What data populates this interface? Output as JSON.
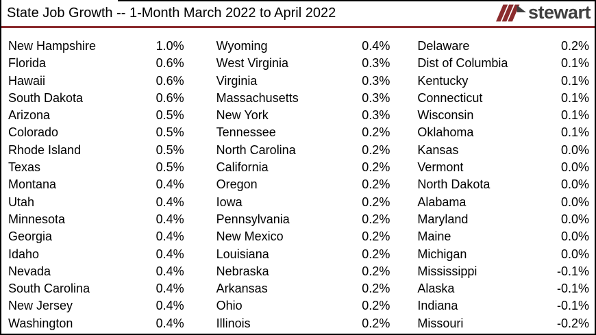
{
  "header": {
    "title": "State Job Growth -- 1-Month March 2022 to April 2022",
    "logo": {
      "text": "stewart",
      "icon": "stewart-triple-slash-icon"
    }
  },
  "colors": {
    "divider_maroon": "#8B2C2E",
    "logo_slash_red": "#8B2C2E",
    "logo_text_gray": "#3F3F3F",
    "border_black": "#000000",
    "text_black": "#000000"
  },
  "table": {
    "columns": [
      {
        "rows": [
          {
            "state": "New Hampshire",
            "value": "1.0%"
          },
          {
            "state": "Florida",
            "value": "0.6%"
          },
          {
            "state": "Hawaii",
            "value": "0.6%"
          },
          {
            "state": "South Dakota",
            "value": "0.6%"
          },
          {
            "state": "Arizona",
            "value": "0.5%"
          },
          {
            "state": "Colorado",
            "value": "0.5%"
          },
          {
            "state": "Rhode Island",
            "value": "0.5%"
          },
          {
            "state": "Texas",
            "value": "0.5%"
          },
          {
            "state": "Montana",
            "value": "0.4%"
          },
          {
            "state": "Utah",
            "value": "0.4%"
          },
          {
            "state": "Minnesota",
            "value": "0.4%"
          },
          {
            "state": "Georgia",
            "value": "0.4%"
          },
          {
            "state": "Idaho",
            "value": "0.4%"
          },
          {
            "state": "Nevada",
            "value": "0.4%"
          },
          {
            "state": "South Carolina",
            "value": "0.4%"
          },
          {
            "state": "New Jersey",
            "value": "0.4%"
          },
          {
            "state": "Washington",
            "value": "0.4%"
          }
        ]
      },
      {
        "rows": [
          {
            "state": "Wyoming",
            "value": "0.4%"
          },
          {
            "state": "West Virginia",
            "value": "0.3%"
          },
          {
            "state": "Virginia",
            "value": "0.3%"
          },
          {
            "state": "Massachusetts",
            "value": "0.3%"
          },
          {
            "state": "New York",
            "value": "0.3%"
          },
          {
            "state": "Tennessee",
            "value": "0.2%"
          },
          {
            "state": "North Carolina",
            "value": "0.2%"
          },
          {
            "state": "California",
            "value": "0.2%"
          },
          {
            "state": "Oregon",
            "value": "0.2%"
          },
          {
            "state": "Iowa",
            "value": "0.2%"
          },
          {
            "state": "Pennsylvania",
            "value": "0.2%"
          },
          {
            "state": "New Mexico",
            "value": "0.2%"
          },
          {
            "state": "Louisiana",
            "value": "0.2%"
          },
          {
            "state": "Nebraska",
            "value": "0.2%"
          },
          {
            "state": "Arkansas",
            "value": "0.2%"
          },
          {
            "state": "Ohio",
            "value": "0.2%"
          },
          {
            "state": "Illinois",
            "value": "0.2%"
          }
        ]
      },
      {
        "rows": [
          {
            "state": "Delaware",
            "value": "0.2%"
          },
          {
            "state": "Dist of Columbia",
            "value": "0.1%"
          },
          {
            "state": "Kentucky",
            "value": "0.1%"
          },
          {
            "state": "Connecticut",
            "value": "0.1%"
          },
          {
            "state": "Wisconsin",
            "value": "0.1%"
          },
          {
            "state": "Oklahoma",
            "value": "0.1%"
          },
          {
            "state": "Kansas",
            "value": "0.0%"
          },
          {
            "state": "Vermont",
            "value": "0.0%"
          },
          {
            "state": "North Dakota",
            "value": "0.0%"
          },
          {
            "state": "Alabama",
            "value": "0.0%"
          },
          {
            "state": "Maryland",
            "value": "0.0%"
          },
          {
            "state": "Maine",
            "value": "0.0%"
          },
          {
            "state": "Michigan",
            "value": "0.0%"
          },
          {
            "state": "Mississippi",
            "value": "-0.1%"
          },
          {
            "state": "Alaska",
            "value": "-0.1%"
          },
          {
            "state": "Indiana",
            "value": "-0.1%"
          },
          {
            "state": "Missouri",
            "value": "-0.2%"
          }
        ]
      }
    ]
  }
}
